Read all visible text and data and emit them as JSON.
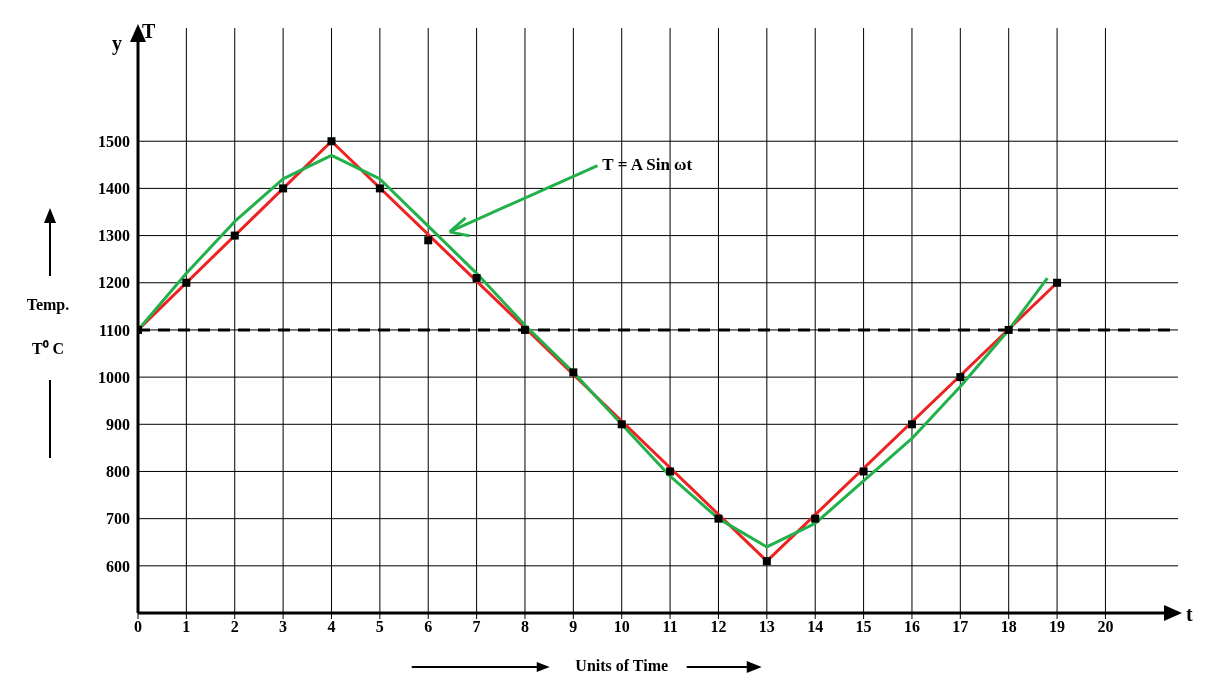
{
  "chart_data": {
    "type": "line",
    "xlabel": "Units of Time",
    "ylabel": "Temp. T⁰ C",
    "x": [
      0,
      1,
      2,
      3,
      4,
      5,
      6,
      7,
      8,
      9,
      10,
      11,
      12,
      13,
      14,
      15,
      16,
      17,
      18,
      19
    ],
    "series": [
      {
        "type": "scatter",
        "color": "#000000",
        "marker": "square",
        "values": [
          1100,
          1200,
          1300,
          1400,
          1500,
          1400,
          1290,
          1210,
          1100,
          1010,
          900,
          800,
          700,
          610,
          700,
          800,
          900,
          1000,
          1100,
          1200
        ]
      },
      {
        "color": "#ee2222",
        "x": [
          0,
          4,
          13,
          19
        ],
        "values": [
          1100,
          1500,
          610,
          1200
        ]
      },
      {
        "color": "#22b04a",
        "x": [
          0,
          1,
          2,
          3,
          4,
          5,
          6,
          7,
          8,
          9,
          10,
          11,
          12,
          13,
          14,
          15,
          16,
          17,
          18,
          18.8
        ],
        "values": [
          1100,
          1220,
          1330,
          1420,
          1470,
          1420,
          1320,
          1220,
          1110,
          1010,
          900,
          790,
          700,
          640,
          690,
          780,
          870,
          980,
          1100,
          1210
        ]
      }
    ],
    "xlim": [
      0,
      21.5
    ],
    "xticks": [
      0,
      1,
      2,
      3,
      4,
      5,
      6,
      7,
      8,
      9,
      10,
      11,
      12,
      13,
      14,
      15,
      16,
      17,
      18,
      19,
      20
    ],
    "ylim": [
      500,
      1740
    ],
    "yticks": [
      600,
      700,
      800,
      900,
      1000,
      1100,
      1200,
      1300,
      1400,
      1500
    ],
    "grid": true,
    "legend": false,
    "line_style": "solid",
    "ref_lines": [
      {
        "axis": "y",
        "value": 1100,
        "color": "#000000",
        "line_style": "dashed"
      }
    ],
    "annotations": [
      "y",
      "T",
      "t",
      "T = A Sin ωt"
    ]
  }
}
